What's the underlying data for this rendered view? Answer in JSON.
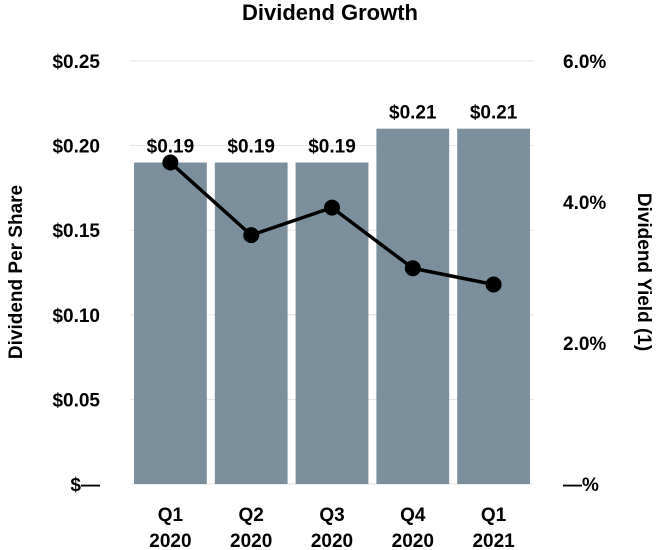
{
  "chart_data": {
    "type": "bar",
    "title": "Dividend Growth",
    "categories": [
      {
        "quarter": "Q1",
        "year": "2020"
      },
      {
        "quarter": "Q2",
        "year": "2020"
      },
      {
        "quarter": "Q3",
        "year": "2020"
      },
      {
        "quarter": "Q4",
        "year": "2020"
      },
      {
        "quarter": "Q1",
        "year": "2021"
      }
    ],
    "series": [
      {
        "name": "Dividend Per Share",
        "type": "bar",
        "axis": "left",
        "color": "#7b909c",
        "values": [
          0.19,
          0.19,
          0.19,
          0.21,
          0.21
        ],
        "labels": [
          "$0.19",
          "$0.19",
          "$0.19",
          "$0.21",
          "$0.21"
        ]
      },
      {
        "name": "Dividend Yield (1)",
        "type": "line",
        "axis": "right",
        "color": "#000000",
        "values": [
          4.56,
          3.53,
          3.92,
          3.06,
          2.83
        ]
      }
    ],
    "y_left": {
      "label": "Dividend Per Share",
      "ylim": [
        0,
        0.25
      ],
      "ticks": [
        0,
        0.05,
        0.1,
        0.15,
        0.2,
        0.25
      ],
      "tick_labels": [
        "$—",
        "$0.05",
        "$0.10",
        "$0.15",
        "$0.20",
        "$0.25"
      ]
    },
    "y_right": {
      "label": "Dividend Yield (1)",
      "ylim": [
        0,
        6.0
      ],
      "ticks": [
        0,
        2.0,
        4.0,
        6.0
      ],
      "tick_labels": [
        "—%",
        "2.0%",
        "4.0%",
        "6.0%"
      ]
    },
    "grid": true,
    "legend": "none"
  }
}
